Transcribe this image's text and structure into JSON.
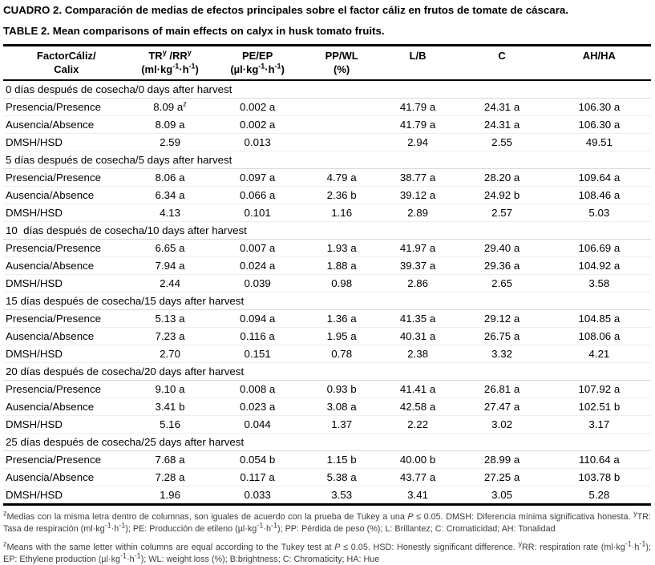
{
  "titles": {
    "es": "CUADRO 2. Comparación de medias de efectos principales sobre el factor cáliz en frutos de tomate de cáscara.",
    "en": "TABLE 2. Mean comparisons of main effects on calyx in husk tomato fruits."
  },
  "table": {
    "columns": [
      {
        "line1": "FactorCáliz/",
        "line2": "Calix"
      },
      {
        "line1": "TR^{y} /RR^{y}",
        "line2": "(ml·kg^{-1}·h^{-1})"
      },
      {
        "line1": "PE/EP",
        "line2": "(µl·kg^{-1}·h^{-1})"
      },
      {
        "line1": "PP/WL",
        "line2": "(%)"
      },
      {
        "line1": "L/B",
        "line2": ""
      },
      {
        "line1": "C",
        "line2": ""
      },
      {
        "line1": "AH/HA",
        "line2": ""
      }
    ],
    "sections": [
      {
        "header": "0 días después de cosecha/0 days after harvest",
        "rows": [
          {
            "label": "Presencia/Presence",
            "values": [
              "8.09 a^{z}",
              "0.002 a",
              "",
              "41.79 a",
              "24.31 a",
              "106.30 a"
            ]
          },
          {
            "label": "Ausencia/Absence",
            "values": [
              "8.09 a",
              "0.002 a",
              "",
              "41.79 a",
              "24.31 a",
              "106.30 a"
            ]
          },
          {
            "label": "DMSH/HSD",
            "values": [
              "2.59",
              "0.013",
              "",
              "2.94",
              "2.55",
              "49.51"
            ]
          }
        ]
      },
      {
        "header": "5 días después de cosecha/5 days after harvest",
        "rows": [
          {
            "label": "Presencia/Presence",
            "values": [
              "8.06 a",
              "0.097 a",
              "4.79 a",
              "38.77 a",
              "28.20 a",
              "109.64 a"
            ]
          },
          {
            "label": "Ausencia/Absence",
            "values": [
              "6.34 a",
              "0.066 a",
              "2.36 b",
              "39.12 a",
              "24.92 b",
              "108.46 a"
            ]
          },
          {
            "label": "DMSH/HSD",
            "values": [
              "4.13",
              "0.101",
              "1.16",
              "2.89",
              "2.57",
              "5.03"
            ]
          }
        ]
      },
      {
        "header": "10  días después de cosecha/10 days after harvest",
        "rows": [
          {
            "label": "Presencia/Presence",
            "values": [
              "6.65 a",
              "0.007 a",
              "1.93 a",
              "41.97 a",
              "29.40 a",
              "106.69 a"
            ]
          },
          {
            "label": "Ausencia/Absence",
            "values": [
              "7.94 a",
              "0.024 a",
              "1.88 a",
              "39.37 a",
              "29.36 a",
              "104.92 a"
            ]
          },
          {
            "label": "DMSH/HSD",
            "values": [
              "2.44",
              "0.039",
              "0.98",
              "2.86",
              "2.65",
              "3.58"
            ]
          }
        ]
      },
      {
        "header": "15 días después de cosecha/15 days after harvest",
        "rows": [
          {
            "label": "Presencia/Presence",
            "values": [
              "5.13 a",
              "0.094 a",
              "1.36 a",
              "41.35 a",
              "29.12 a",
              "104.85 a"
            ]
          },
          {
            "label": "Ausencia/Absence",
            "values": [
              "7.23 a",
              "0.116 a",
              "1.95 a",
              "40.31 a",
              "26.75 a",
              "108.06 a"
            ]
          },
          {
            "label": "DMSH/HSD",
            "values": [
              "2.70",
              "0.151",
              "0.78",
              "2.38",
              "3.32",
              "4.21"
            ]
          }
        ]
      },
      {
        "header": "20 días después de cosecha/20 days after harvest",
        "rows": [
          {
            "label": "Presencia/Presence",
            "values": [
              "9.10 a",
              "0.008 a",
              "0.93 b",
              "41.41 a",
              "26.81 a",
              "107.92 a"
            ]
          },
          {
            "label": "Ausencia/Absence",
            "values": [
              "3.41 b",
              "0.023 a",
              "3.08 a",
              "42.58 a",
              "27.47 a",
              "102.51 b"
            ]
          },
          {
            "label": "DMSH/HSD",
            "values": [
              "5.16",
              "0.044",
              "1.37",
              "2.22",
              "3.02",
              "3.17"
            ]
          }
        ]
      },
      {
        "header": "25 días después de cosecha/25 days after harvest",
        "rows": [
          {
            "label": "Presencia/Presence",
            "values": [
              "7.68 a",
              "0.054 b",
              "1.15 b",
              "40.00 b",
              "28.99 a",
              "110.64 a"
            ]
          },
          {
            "label": "Ausencia/Absence",
            "values": [
              "7.28 a",
              "0.117 a",
              "5.38 a",
              "43.77 a",
              "27.25 a",
              "103.78 b"
            ]
          },
          {
            "label": "DMSH/HSD",
            "values": [
              "1.96",
              "0.033",
              "3.53",
              "3.41",
              "3.05",
              "5.28"
            ]
          }
        ]
      }
    ]
  },
  "footnotes": {
    "es": "^{z}Medias con la misma letra dentro de columnas, son iguales de acuerdo con la prueba de Tukey a una *{P} ≤ 0.05. DMSH: Diferencia mínima significativa honesta. ^{y}TR: Tasa de respiración (ml·kg^{-1}·h^{-1}); PE: Producción de etileno (µl·kg^{-1}·h^{-1}); PP: Pérdida de peso (%); L: Brillantez; C: Cromaticidad; AH: Tonalidad",
    "en": "^{z}Means with the same letter within columns are equal according to the Tukey test at *{P} ≤ 0.05. HSD: Honestly significant difference. ^{y}RR: respiration rate (ml·kg^{-1}·h^{-1}); EP: Ethylene production (µl·kg^{-1}·h^{-1}); WL: weight loss (%); B:brightness; C: Chromaticity; HA: Hue"
  }
}
